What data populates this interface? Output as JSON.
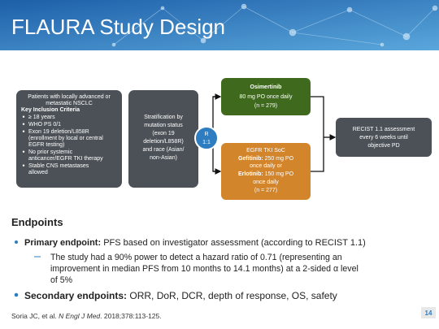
{
  "header": {
    "title": "FLAURA Study Design"
  },
  "diagram": {
    "patients": {
      "lines": [
        "Patients with locally advanced or",
        "metastatic NSCLC"
      ],
      "criteria_title": "Key Inclusion Criteria",
      "criteria": [
        [
          "≥ 18 years"
        ],
        [
          "WHO PS 0/1"
        ],
        [
          "Exon 19 deletion/L858R",
          "(enrollment by local or central",
          "EGFR testing)"
        ],
        [
          "No prior systemic",
          "anticancer/EGFR TKI therapy"
        ],
        [
          "Stable CNS metastases",
          "allowed"
        ]
      ]
    },
    "stratification": [
      "Stratification by",
      "mutation status",
      "(exon 19",
      "deletion/L858R)",
      "and race (Asian/",
      "non-Asian)"
    ],
    "randomization": [
      "R",
      "1:1"
    ],
    "arm1": {
      "drug": "Osimertinib",
      "lines": [
        "80 mg PO once daily",
        "(n = 279)"
      ]
    },
    "arm2": {
      "title": "EGFR TKI SoC",
      "gefitinib_label": "Gefitinib:",
      "gefitinib_dose": "250 mg PO",
      "gefitinib_rest": "once daily or",
      "erlotinib_label": "Erlotinib:",
      "erlotinib_dose": "150 mg PO",
      "erlotinib_rest": "once daily",
      "n": "(n = 277)"
    },
    "assessment": [
      "RECIST 1.1 assessment",
      "every 6 weeks until",
      "objective PD"
    ]
  },
  "endpoints": {
    "heading": "Endpoints",
    "primary_label": "Primary endpoint:",
    "primary_text": "PFS based on investigator assessment (according to RECIST 1.1)",
    "sub": [
      "The study had a 90% power to detect a hazard ratio of 0.71 (representing an",
      "improvement in median PFS from 10 months to 14.1 months) at a 2-sided α level",
      "of 5%"
    ],
    "secondary_label": "Secondary endpoints:",
    "secondary_text": "ORR, DoR, DCR, depth of response, OS, safety"
  },
  "footer": {
    "citation_authors": "Soria JC, et al.",
    "citation_journal": "N Engl J Med",
    "citation_rest": ". 2018;378:113-125.",
    "page": "14"
  }
}
